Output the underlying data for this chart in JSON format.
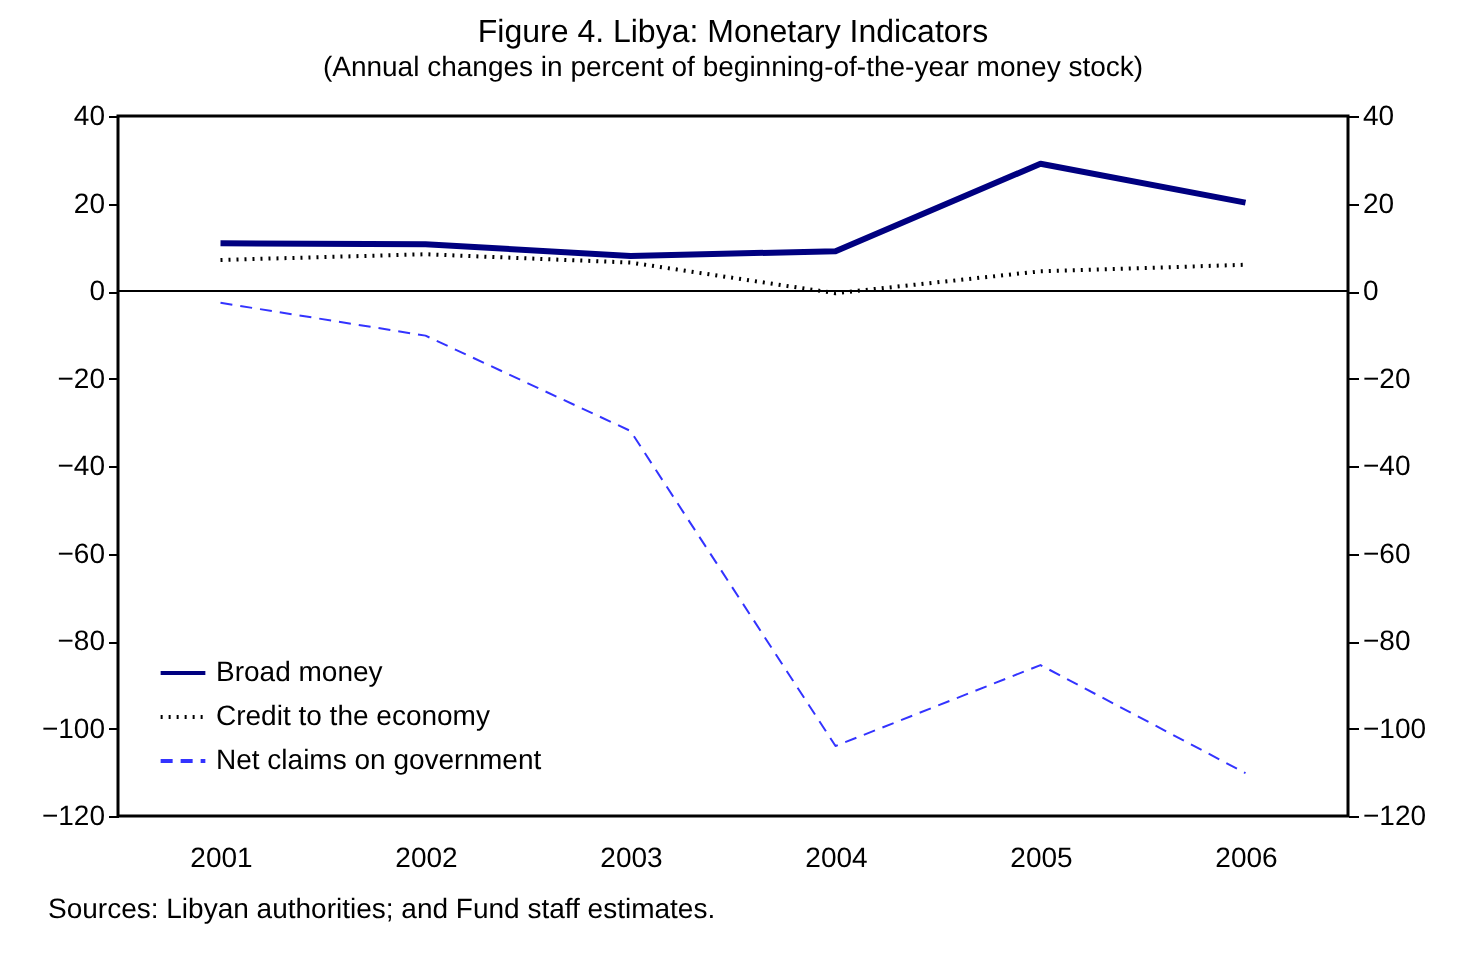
{
  "chart_data": {
    "type": "line",
    "title": "Figure 4. Libya: Monetary Indicators",
    "subtitle": "(Annual changes in percent of beginning-of-the-year money stock)",
    "categories": [
      "2001",
      "2002",
      "2003",
      "2004",
      "2005",
      "2006"
    ],
    "series": [
      {
        "name": "Broad money",
        "color": "#000080",
        "line_style": "solid",
        "values": [
          10.9,
          10.7,
          8.0,
          9.1,
          29.1,
          20.2
        ]
      },
      {
        "name": "Credit to the economy",
        "color": "#000000",
        "line_style": "dotted",
        "values": [
          7.1,
          8.4,
          6.5,
          -0.5,
          4.5,
          6.0
        ]
      },
      {
        "name": "Net claims on government",
        "color": "#3333ff",
        "line_style": "dashed",
        "values": [
          -2.7,
          -10.2,
          -32,
          -104,
          -85.5,
          -110.2
        ]
      }
    ],
    "ylim": [
      -120,
      40
    ],
    "yticks": [
      -120,
      -100,
      -80,
      -60,
      -40,
      -20,
      0,
      20,
      40
    ],
    "y2lim": [
      -120,
      40
    ],
    "y2ticks": [
      -120,
      -100,
      -80,
      -60,
      -40,
      -20,
      0,
      20,
      40
    ],
    "ref_lines": [
      {
        "axis": "y",
        "value": 0,
        "color": "#000000"
      }
    ],
    "grid": false,
    "legend": "bottom left",
    "marker": "none",
    "annotations": [
      "Sources: Libyan authorities; and Fund staff estimates."
    ]
  }
}
